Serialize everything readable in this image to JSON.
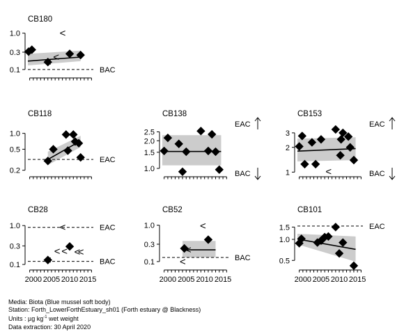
{
  "chart_data": [
    {
      "type": "scatter",
      "title": "CB180",
      "scale": "log",
      "ylim": [
        0.07,
        1.4
      ],
      "yticks": [
        {
          "label": "1.0",
          "value": 1.0
        },
        {
          "label": "0.3",
          "value": 0.3
        },
        {
          "label": "0.1",
          "value": 0.1
        }
      ],
      "xlim": [
        1998.5,
        2016.5
      ],
      "xtick_labels": [],
      "bac": 0.1,
      "eac": null,
      "band": {
        "x": [
          1998.5,
          2013
        ],
        "lower_start": 0.13,
        "lower_end": 0.17,
        "upper_start": 0.27,
        "upper_end": 0.33
      },
      "trend": {
        "x": [
          1998.5,
          2013
        ],
        "y": [
          0.17,
          0.22
        ]
      },
      "points": [
        [
          1998.7,
          0.31
        ],
        [
          1999.6,
          0.35
        ],
        [
          2004,
          0.16
        ],
        [
          2010,
          0.27
        ],
        [
          2013,
          0.25
        ]
      ],
      "less_than": [
        [
          2004,
          0.16
        ],
        [
          2006.2,
          0.22
        ],
        [
          2008,
          1.0
        ]
      ],
      "arrows": null
    },
    {
      "type": "scatter",
      "title": "CB118",
      "scale": "log",
      "ylim": [
        0.17,
        1.3
      ],
      "yticks": [
        {
          "label": "1.0",
          "value": 1.0
        },
        {
          "label": "0.5",
          "value": 0.5
        },
        {
          "label": "0.2",
          "value": 0.2
        }
      ],
      "xlim": [
        1998.5,
        2016.5
      ],
      "xtick_labels": [],
      "bac": null,
      "eac": 0.32,
      "band": {
        "x": [
          2004,
          2013
        ],
        "lower_start": 0.25,
        "lower_end": 0.55,
        "upper_start": 0.45,
        "upper_end": 0.9
      },
      "trend": {
        "x": [
          2004,
          2013
        ],
        "y": [
          0.32,
          0.72
        ]
      },
      "points": [
        [
          2004,
          0.3
        ],
        [
          2005.5,
          0.5
        ],
        [
          2009,
          0.95
        ],
        [
          2009.5,
          0.47
        ],
        [
          2011,
          0.95
        ],
        [
          2011.5,
          0.7
        ],
        [
          2012.5,
          0.65
        ],
        [
          2013,
          0.35
        ]
      ],
      "less_than": [],
      "arrows": null
    },
    {
      "type": "scatter",
      "title": "CB138",
      "scale": "log",
      "ylim": [
        0.87,
        2.8
      ],
      "yticks": [
        {
          "label": "2.5",
          "value": 2.5
        },
        {
          "label": "2.0",
          "value": 2.0
        },
        {
          "label": "1.5",
          "value": 1.5
        },
        {
          "label": "1.0",
          "value": 1.0
        }
      ],
      "xlim": [
        1998.5,
        2016.5
      ],
      "xtick_labels": [],
      "bac": null,
      "eac": null,
      "band": {
        "x": [
          1998.5,
          2014.5
        ],
        "lower_start": 1.08,
        "lower_end": 1.08,
        "upper_start": 2.3,
        "upper_end": 2.3
      },
      "trend": {
        "x": [
          1998.5,
          2014.5
        ],
        "y": [
          1.53,
          1.53
        ]
      },
      "points": [
        [
          1999,
          1.55
        ],
        [
          2000,
          2.15
        ],
        [
          2003,
          1.85
        ],
        [
          2004,
          0.92
        ],
        [
          2005,
          1.52
        ],
        [
          2009,
          2.55
        ],
        [
          2011,
          1.55
        ],
        [
          2012,
          2.35
        ],
        [
          2013,
          1.52
        ],
        [
          2014,
          0.97
        ]
      ],
      "less_than": [],
      "arrows": {
        "top": "EAC",
        "bottom": "BAC"
      }
    },
    {
      "type": "scatter",
      "title": "CB153",
      "scale": "log",
      "ylim": [
        0.95,
        3.5
      ],
      "yticks": [
        {
          "label": "3",
          "value": 3
        },
        {
          "label": "2",
          "value": 2
        },
        {
          "label": "1",
          "value": 1
        }
      ],
      "xlim": [
        1998.5,
        2016.5
      ],
      "xtick_labels": [],
      "bac": null,
      "eac": null,
      "band": {
        "x": [
          1998.5,
          2014.5
        ],
        "lower_start": 1.35,
        "lower_end": 1.4,
        "upper_start": 2.55,
        "upper_end": 2.65
      },
      "trend": {
        "x": [
          1998.5,
          2014.5
        ],
        "y": [
          1.8,
          1.93
        ]
      },
      "points": [
        [
          1999,
          2.05
        ],
        [
          1999.8,
          2.75
        ],
        [
          2000.5,
          1.25
        ],
        [
          2002.5,
          2.3
        ],
        [
          2003.5,
          1.25
        ],
        [
          2005,
          2.5
        ],
        [
          2009,
          3.3
        ],
        [
          2010.3,
          1.6
        ],
        [
          2010.5,
          2.5
        ],
        [
          2011,
          3.0
        ],
        [
          2012.5,
          2.7
        ],
        [
          2013,
          2.0
        ],
        [
          2014,
          1.4
        ]
      ],
      "less_than": [
        [
          2007,
          1.02
        ]
      ],
      "arrows": {
        "top": "EAC",
        "bottom": "BAC"
      }
    },
    {
      "type": "scatter",
      "title": "CB28",
      "scale": "log",
      "ylim": [
        0.085,
        1.4
      ],
      "yticks": [
        {
          "label": "1.0",
          "value": 1.0
        },
        {
          "label": "0.3",
          "value": 0.3
        },
        {
          "label": "0.1",
          "value": 0.1
        }
      ],
      "xlim": [
        1998.5,
        2016.5
      ],
      "xtick_labels": [
        "2000",
        "2005",
        "2010",
        "2015"
      ],
      "xtick_values": [
        2000,
        2005,
        2010,
        2015
      ],
      "bac": 0.12,
      "eac": 0.9,
      "band": null,
      "trend": null,
      "points": [
        [
          2004,
          0.13
        ],
        [
          2010,
          0.29
        ]
      ],
      "less_than": [
        [
          2004,
          0.13
        ],
        [
          2008,
          0.9
        ],
        [
          2006.5,
          0.22
        ],
        [
          2008.5,
          0.22
        ],
        [
          2012,
          0.21
        ],
        [
          2013,
          0.21
        ]
      ],
      "arrows": null
    },
    {
      "type": "scatter",
      "title": "CB52",
      "scale": "log",
      "ylim": [
        0.07,
        1.4
      ],
      "yticks": [
        {
          "label": "1.0",
          "value": 1.0
        },
        {
          "label": "0.3",
          "value": 0.3
        },
        {
          "label": "0.1",
          "value": 0.1
        }
      ],
      "xlim": [
        1998.5,
        2016.5
      ],
      "xtick_labels": [
        "2000",
        "2005",
        "2010",
        "2015"
      ],
      "xtick_values": [
        2000,
        2005,
        2010,
        2015
      ],
      "bac": 0.13,
      "eac": null,
      "band": {
        "x": [
          2004,
          2013
        ],
        "lower_start": 0.13,
        "lower_end": 0.13,
        "upper_start": 0.37,
        "upper_end": 0.37
      },
      "trend": {
        "x": [
          2004,
          2013
        ],
        "y": [
          0.21,
          0.21
        ]
      },
      "points": [
        [
          2004.5,
          0.23
        ],
        [
          2011,
          0.4
        ]
      ],
      "less_than": [
        [
          2005.5,
          0.21
        ],
        [
          2004,
          0.1
        ],
        [
          2009.5,
          0.96
        ]
      ],
      "arrows": null
    },
    {
      "type": "scatter",
      "title": "CB101",
      "scale": "log",
      "ylim": [
        0.4,
        1.9
      ],
      "yticks": [
        {
          "label": "1.5",
          "value": 1.5
        },
        {
          "label": "1.0",
          "value": 1.0
        },
        {
          "label": "0.5",
          "value": 0.5
        }
      ],
      "xlim": [
        1998.5,
        2016.5
      ],
      "xtick_labels": [
        "2000",
        "2005",
        "2010",
        "2015"
      ],
      "xtick_values": [
        2000,
        2005,
        2010,
        2015
      ],
      "bac": null,
      "eac": 1.55,
      "band": {
        "x": [
          1998.5,
          2014.5
        ],
        "lower_start": 0.85,
        "lower_end": 0.48,
        "upper_start": 1.2,
        "upper_end": 1.1
      },
      "trend": {
        "x": [
          1998.5,
          2014.5
        ],
        "y": [
          1.01,
          0.72
        ]
      },
      "points": [
        [
          1999,
          0.88
        ],
        [
          1999.6,
          1.02
        ],
        [
          2004,
          0.9
        ],
        [
          2005,
          0.96
        ],
        [
          2006,
          1.08
        ],
        [
          2007,
          1.1
        ],
        [
          2009,
          1.5
        ],
        [
          2010,
          0.63
        ],
        [
          2011,
          0.9
        ],
        [
          2014,
          0.42
        ]
      ],
      "less_than": [
        [
          2004.5,
          0.92
        ]
      ],
      "arrows": null
    }
  ],
  "footer": {
    "media": "Media: Biota (Blue mussel soft body)",
    "station": "Station: Forth_LowerForthEstuary_sh01 (Forth estuary @ Blackness)",
    "units_prefix": "Units : µg kg",
    "units_sup": "-1",
    "units_suffix": " wet weight",
    "extraction": "Data extraction: 30 April 2020"
  },
  "colors": {
    "band": "#cccccc",
    "marker": "#000000",
    "line": "#000000",
    "background": "#ffffff"
  }
}
